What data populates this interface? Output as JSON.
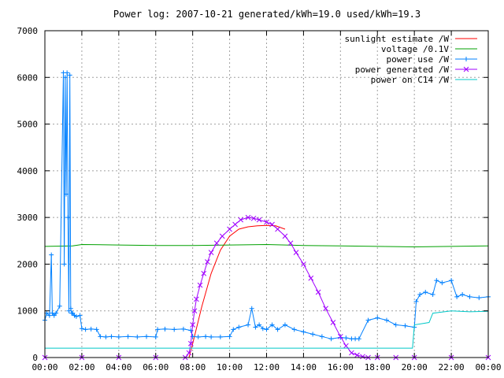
{
  "chart_data": {
    "type": "line",
    "title": "Power log: 2007-10-21 generated/kWh=19.0 used/kWh=19.3",
    "xlabel": "",
    "ylabel": "",
    "x_tick_labels": [
      "00:00",
      "02:00",
      "04:00",
      "06:00",
      "08:00",
      "10:00",
      "12:00",
      "14:00",
      "16:00",
      "18:00",
      "20:00",
      "22:00",
      "00:00"
    ],
    "y_tick_labels": [
      "0",
      "1000",
      "2000",
      "3000",
      "4000",
      "5000",
      "6000",
      "7000"
    ],
    "xlim_hours": [
      0,
      24
    ],
    "ylim": [
      0,
      7000
    ],
    "grid": true,
    "legend_position": "top-right",
    "series": [
      {
        "name": "sunlight estimate /W",
        "color": "#ff0000",
        "marker": "none",
        "x_hours": [
          7.8,
          8.0,
          8.5,
          9.0,
          9.5,
          10.0,
          10.5,
          11.0,
          11.5,
          12.0,
          12.5,
          13.0
        ],
        "values": [
          0,
          300,
          1100,
          1800,
          2300,
          2600,
          2750,
          2800,
          2820,
          2830,
          2820,
          2750
        ]
      },
      {
        "name": "voltage /0.1V",
        "color": "#00a000",
        "marker": "none",
        "x_hours": [
          0,
          1.5,
          2,
          4,
          6,
          8,
          10,
          12,
          14,
          16,
          18,
          20,
          22,
          24
        ],
        "values": [
          2380,
          2390,
          2420,
          2410,
          2400,
          2400,
          2410,
          2420,
          2400,
          2390,
          2380,
          2370,
          2380,
          2390
        ]
      },
      {
        "name": "power use /W",
        "color": "#0080ff",
        "marker": "plus",
        "x_hours": [
          0.0,
          0.1,
          0.25,
          0.35,
          0.4,
          0.5,
          0.6,
          0.8,
          1.0,
          1.05,
          1.1,
          1.15,
          1.2,
          1.25,
          1.3,
          1.35,
          1.4,
          1.45,
          1.5,
          1.6,
          1.7,
          1.9,
          2.0,
          2.2,
          2.5,
          2.8,
          3.0,
          3.3,
          3.6,
          4.0,
          4.5,
          5.0,
          5.5,
          6.0,
          6.1,
          6.5,
          7.0,
          7.5,
          7.9,
          8.0,
          8.3,
          8.7,
          9.0,
          9.5,
          10.0,
          10.2,
          10.5,
          11.0,
          11.2,
          11.4,
          11.6,
          11.8,
          12.0,
          12.3,
          12.6,
          13.0,
          13.5,
          14.0,
          14.5,
          15.0,
          15.5,
          16.0,
          16.3,
          16.6,
          16.8,
          17.0,
          17.5,
          18.0,
          18.5,
          19.0,
          19.5,
          20.0,
          20.1,
          20.3,
          20.6,
          21.0,
          21.2,
          21.5,
          22.0,
          22.3,
          22.6,
          23.0,
          23.5,
          24.0
        ],
        "values": [
          800,
          950,
          900,
          2200,
          950,
          900,
          950,
          1100,
          6100,
          2000,
          6000,
          3500,
          6100,
          3000,
          1000,
          6050,
          1050,
          950,
          950,
          900,
          880,
          900,
          620,
          600,
          610,
          600,
          450,
          440,
          450,
          440,
          450,
          440,
          450,
          440,
          600,
          610,
          600,
          610,
          580,
          450,
          440,
          450,
          440,
          440,
          450,
          600,
          650,
          700,
          1050,
          650,
          700,
          620,
          600,
          700,
          600,
          700,
          600,
          550,
          500,
          450,
          400,
          430,
          420,
          400,
          400,
          400,
          800,
          850,
          800,
          700,
          680,
          650,
          1200,
          1350,
          1400,
          1350,
          1650,
          1600,
          1650,
          1300,
          1350,
          1300,
          1280,
          1300
        ]
      },
      {
        "name": "power generated /W",
        "color": "#a000ff",
        "marker": "x",
        "x_hours": [
          0.0,
          2.0,
          4.0,
          6.0,
          7.6,
          7.8,
          7.9,
          8.0,
          8.1,
          8.2,
          8.4,
          8.6,
          8.8,
          9.0,
          9.3,
          9.6,
          10.0,
          10.3,
          10.6,
          11.0,
          11.3,
          11.6,
          12.0,
          12.3,
          12.6,
          13.0,
          13.3,
          13.6,
          14.0,
          14.4,
          14.8,
          15.2,
          15.6,
          16.0,
          16.3,
          16.6,
          16.9,
          17.2,
          17.5,
          18.0,
          19.0,
          20.0,
          22.0,
          24.0
        ],
        "values": [
          0,
          0,
          0,
          0,
          0,
          100,
          300,
          700,
          1000,
          1250,
          1550,
          1800,
          2050,
          2250,
          2450,
          2600,
          2750,
          2850,
          2950,
          3000,
          2980,
          2950,
          2900,
          2850,
          2750,
          2600,
          2450,
          2250,
          2000,
          1700,
          1400,
          1050,
          750,
          450,
          250,
          100,
          50,
          20,
          0,
          0,
          0,
          0,
          0,
          0
        ]
      },
      {
        "name": "power on C14 /W",
        "color": "#00c8c8",
        "marker": "none",
        "x_hours": [
          0,
          2,
          4,
          6,
          8,
          10,
          12,
          14,
          16,
          18,
          19.9,
          20.0,
          20.8,
          21.0,
          22,
          23,
          24
        ],
        "values": [
          200,
          200,
          200,
          200,
          200,
          200,
          200,
          200,
          200,
          200,
          200,
          700,
          750,
          950,
          1000,
          980,
          990
        ]
      }
    ]
  }
}
